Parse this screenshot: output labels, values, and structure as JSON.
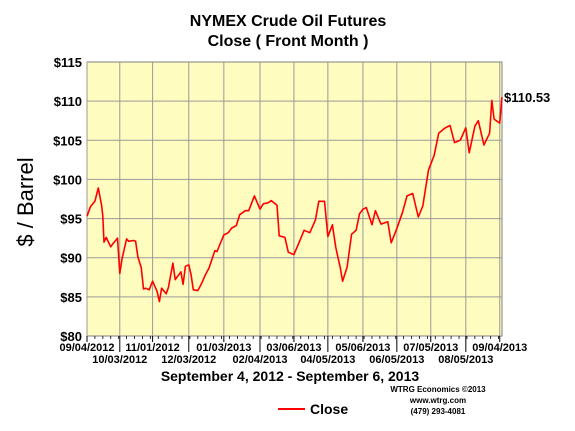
{
  "chart_data": {
    "type": "line",
    "title": "NYMEX Crude Oil Futures",
    "subtitle": "Close ( Front Month )",
    "ylabel": "$ / Barrel",
    "xlabel": "September 4, 2012 - September 6, 2013",
    "ylim": [
      80,
      115
    ],
    "yticks": [
      "$80",
      "$85",
      "$90",
      "$95",
      "$100",
      "$105",
      "$110",
      "$115"
    ],
    "ytick_values": [
      80,
      85,
      90,
      95,
      100,
      105,
      110,
      115
    ],
    "grid": true,
    "plot_background": "#fffcc0",
    "xticks_upper": [
      "09/04/2012",
      "11/01/2012",
      "01/03/2013",
      "03/06/2013",
      "05/06/2013",
      "07/05/2013",
      "09/04/2013"
    ],
    "xticks_lower": [
      "10/03/2012",
      "12/03/2012",
      "02/04/2013",
      "04/05/2013",
      "06/05/2013",
      "08/05/2013"
    ],
    "last_value_label": "$110.53",
    "series": [
      {
        "name": "Close",
        "color": "#ff0000",
        "x": [
          "2012-09-04",
          "2012-09-07",
          "2012-09-11",
          "2012-09-14",
          "2012-09-17",
          "2012-09-18",
          "2012-09-19",
          "2012-09-21",
          "2012-09-25",
          "2012-09-27",
          "2012-10-01",
          "2012-10-03",
          "2012-10-05",
          "2012-10-09",
          "2012-10-11",
          "2012-10-15",
          "2012-10-17",
          "2012-10-19",
          "2012-10-22",
          "2012-10-24",
          "2012-10-26",
          "2012-10-29",
          "2012-11-01",
          "2012-11-05",
          "2012-11-07",
          "2012-11-09",
          "2012-11-13",
          "2012-11-15",
          "2012-11-19",
          "2012-11-21",
          "2012-11-26",
          "2012-11-28",
          "2012-11-30",
          "2012-12-03",
          "2012-12-05",
          "2012-12-07",
          "2012-12-11",
          "2012-12-14",
          "2012-12-18",
          "2012-12-21",
          "2012-12-26",
          "2012-12-28",
          "2013-01-03",
          "2013-01-07",
          "2013-01-10",
          "2013-01-14",
          "2013-01-17",
          "2013-01-22",
          "2013-01-25",
          "2013-01-30",
          "2013-02-04",
          "2013-02-07",
          "2013-02-11",
          "2013-02-14",
          "2013-02-19",
          "2013-02-21",
          "2013-02-26",
          "2013-03-01",
          "2013-03-06",
          "2013-03-11",
          "2013-03-15",
          "2013-03-20",
          "2013-03-25",
          "2013-03-28",
          "2013-04-02",
          "2013-04-05",
          "2013-04-09",
          "2013-04-12",
          "2013-04-16",
          "2013-04-18",
          "2013-04-22",
          "2013-04-26",
          "2013-04-30",
          "2013-05-03",
          "2013-05-06",
          "2013-05-09",
          "2013-05-14",
          "2013-05-17",
          "2013-05-22",
          "2013-05-28",
          "2013-05-31",
          "2013-06-05",
          "2013-06-10",
          "2013-06-14",
          "2013-06-19",
          "2013-06-24",
          "2013-06-28",
          "2013-07-03",
          "2013-07-08",
          "2013-07-12",
          "2013-07-17",
          "2013-07-22",
          "2013-07-26",
          "2013-07-31",
          "2013-08-05",
          "2013-08-08",
          "2013-08-13",
          "2013-08-16",
          "2013-08-21",
          "2013-08-26",
          "2013-08-28",
          "2013-08-30",
          "2013-09-04",
          "2013-09-06"
        ],
        "values": [
          95.3,
          96.5,
          97.2,
          98.9,
          96.6,
          95.3,
          92.0,
          92.6,
          91.4,
          91.8,
          92.5,
          88.0,
          89.9,
          92.4,
          92.1,
          92.2,
          92.1,
          90.1,
          88.7,
          86.0,
          86.1,
          85.9,
          87.0,
          85.7,
          84.4,
          86.1,
          85.4,
          86.2,
          89.3,
          87.2,
          88.2,
          86.6,
          88.9,
          89.1,
          87.9,
          85.9,
          85.8,
          86.6,
          87.9,
          88.7,
          90.9,
          90.8,
          92.9,
          93.2,
          93.8,
          94.1,
          95.5,
          96.0,
          96.0,
          97.9,
          96.2,
          96.9,
          97.0,
          97.3,
          96.7,
          92.8,
          92.6,
          90.7,
          90.4,
          92.1,
          93.5,
          93.2,
          94.8,
          97.2,
          97.2,
          92.7,
          94.2,
          91.3,
          88.7,
          87.0,
          88.8,
          93.0,
          93.5,
          95.6,
          96.2,
          96.4,
          94.2,
          96.0,
          94.3,
          94.6,
          91.9,
          93.7,
          95.8,
          97.9,
          98.2,
          95.2,
          96.6,
          101.2,
          103.1,
          105.9,
          106.5,
          106.9,
          104.7,
          105.0,
          106.6,
          103.4,
          106.8,
          107.5,
          104.4,
          105.9,
          110.1,
          107.7,
          107.2,
          110.53
        ]
      }
    ]
  },
  "credit": {
    "line1": "WTRG Economics  ©2013",
    "line2": "www.wtrg.com",
    "line3": "(479) 293-4081"
  }
}
